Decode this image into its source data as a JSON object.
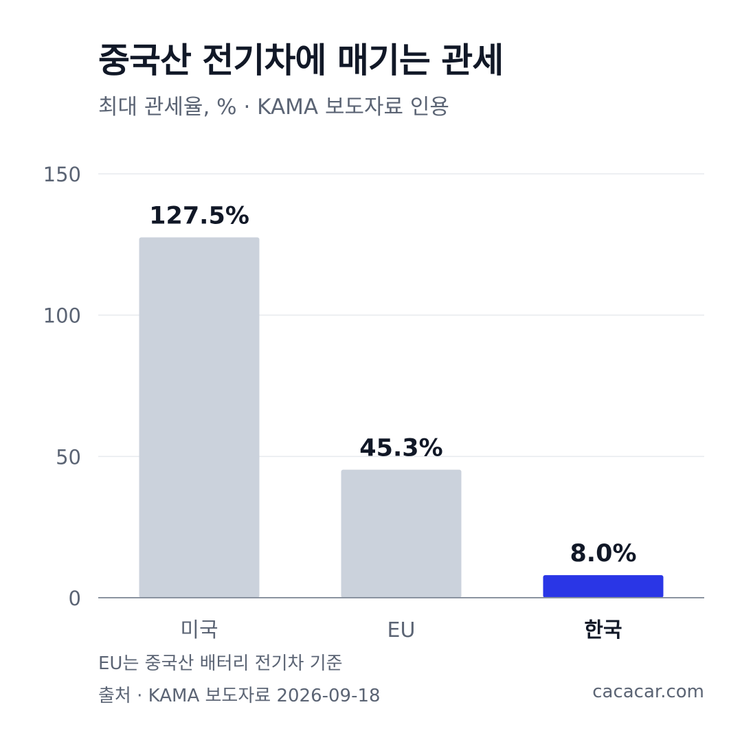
{
  "header": {
    "title": "중국산 전기차에 매기는 관세",
    "subtitle": "최대 관세율, % · KAMA 보도자료 인용"
  },
  "footer": {
    "note": "EU는 중국산 배터리 전기차 기준",
    "source": "출처 · KAMA 보도자료 2026-09-18",
    "site": "cacacar.com"
  },
  "colors": {
    "bar_default": "#cbd2dc",
    "bar_highlight": "#2a36e6",
    "grid": "#e7eaee",
    "axis": "#8a93a0",
    "tick_text": "#5b6474",
    "value_text": "#111827"
  },
  "chart_data": {
    "type": "bar",
    "title": "중국산 전기차에 매기는 관세",
    "subtitle": "최대 관세율, % · KAMA 보도자료 인용",
    "xlabel": "",
    "ylabel": "",
    "categories": [
      "미국",
      "EU",
      "한국"
    ],
    "values": [
      127.5,
      45.3,
      8.0
    ],
    "value_labels": [
      "127.5%",
      "45.3%",
      "8.0%"
    ],
    "highlight": [
      false,
      false,
      true
    ],
    "ylim": [
      0,
      150
    ],
    "yticks": [
      0,
      50,
      100,
      150
    ],
    "ytick_labels": [
      "0",
      "50",
      "100",
      "150"
    ],
    "grid": true,
    "legend": "none"
  }
}
